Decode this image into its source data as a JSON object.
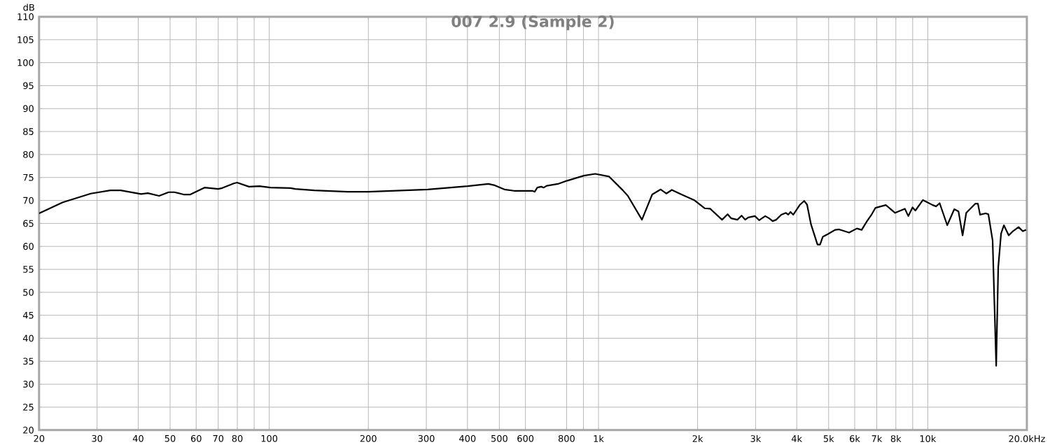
{
  "chart_data": {
    "type": "line",
    "title": "007 2.9 (Sample 2)",
    "ylabel": "dB",
    "log": "x",
    "grid": true,
    "xlim": [
      20,
      20000
    ],
    "ylim": [
      20,
      110
    ],
    "xticks": [
      20,
      30,
      40,
      50,
      60,
      70,
      80,
      {
        "value": 90,
        "label": null
      },
      100,
      200,
      300,
      400,
      500,
      600,
      800,
      {
        "value": 900,
        "label": null
      },
      {
        "value": 1000,
        "label": "1k"
      },
      {
        "value": 2000,
        "label": "2k"
      },
      {
        "value": 3000,
        "label": "3k"
      },
      {
        "value": 4000,
        "label": "4k"
      },
      {
        "value": 5000,
        "label": "5k"
      },
      {
        "value": 6000,
        "label": "6k"
      },
      {
        "value": 7000,
        "label": "7k"
      },
      {
        "value": 8000,
        "label": "8k"
      },
      {
        "value": 9000,
        "label": null
      },
      {
        "value": 10000,
        "label": "10k"
      },
      {
        "value": 20000,
        "label": "20.0k"
      }
    ],
    "xlabel": "Hz",
    "yticks": [
      20,
      25,
      30,
      35,
      40,
      45,
      50,
      55,
      60,
      65,
      70,
      75,
      80,
      85,
      90,
      95,
      100,
      105,
      110
    ],
    "series": [
      {
        "color": "#000000",
        "x": [
          20,
          23.6,
          28.7,
          32.9,
          35.4,
          40.8,
          42.8,
          46.3,
          49.5,
          51.5,
          54.9,
          57.6,
          63.6,
          70,
          72,
          78,
          79.9,
          86.8,
          93.4,
          100.8,
          116,
          120,
          137,
          173,
          200,
          303,
          400,
          463,
          484,
          518,
          554,
          629,
          640,
          652,
          670,
          682,
          696,
          753,
          803,
          903,
          977,
          1077,
          1186,
          1228,
          1355,
          1456,
          1545,
          1607,
          1670,
          1787,
          1951,
          2100,
          2184,
          2373,
          2467,
          2530,
          2641,
          2720,
          2790,
          2850,
          2985,
          3075,
          3210,
          3300,
          3380,
          3465,
          3590,
          3710,
          3770,
          3830,
          3905,
          4095,
          4215,
          4300,
          4420,
          4625,
          4710,
          4800,
          4980,
          5230,
          5380,
          5770,
          6090,
          6300,
          6540,
          6760,
          6940,
          7460,
          7960,
          8520,
          8730,
          8990,
          9170,
          9670,
          10350,
          10590,
          10870,
          11460,
          12040,
          12400,
          12760,
          13090,
          13940,
          14200,
          14420,
          14990,
          15280,
          15740,
          16140,
          16370,
          16700,
          17030,
          17620,
          18140,
          18870,
          19440,
          19900
        ],
        "values": [
          67.2,
          69.6,
          71.5,
          72.2,
          72.2,
          71.4,
          71.6,
          71.0,
          71.8,
          71.8,
          71.3,
          71.3,
          72.8,
          72.5,
          72.7,
          73.7,
          73.9,
          73.0,
          73.1,
          72.8,
          72.7,
          72.5,
          72.2,
          71.9,
          71.9,
          72.4,
          73.1,
          73.6,
          73.3,
          72.4,
          72.1,
          72.1,
          71.9,
          72.8,
          73.0,
          72.8,
          73.2,
          73.6,
          74.3,
          75.4,
          75.8,
          75.2,
          72.2,
          71.0,
          65.8,
          71.3,
          72.4,
          71.5,
          72.3,
          71.3,
          70.1,
          68.3,
          68.2,
          65.8,
          67.0,
          66.1,
          65.8,
          66.7,
          65.8,
          66.3,
          66.6,
          65.7,
          66.6,
          66.1,
          65.5,
          65.8,
          66.9,
          67.3,
          66.9,
          67.5,
          66.9,
          69.1,
          69.9,
          69.1,
          64.8,
          60.4,
          60.4,
          62.1,
          62.7,
          63.6,
          63.7,
          63.0,
          63.9,
          63.6,
          65.5,
          67.0,
          68.4,
          69.0,
          67.3,
          68.2,
          66.6,
          68.5,
          67.8,
          70.1,
          69.0,
          68.7,
          69.4,
          64.6,
          68.1,
          67.6,
          62.4,
          67.3,
          69.3,
          69.3,
          66.9,
          67.2,
          67.0,
          61.3,
          34.0,
          55.4,
          62.8,
          64.6,
          62.4,
          63.3,
          64.2,
          63.3,
          63.6
        ]
      }
    ]
  }
}
